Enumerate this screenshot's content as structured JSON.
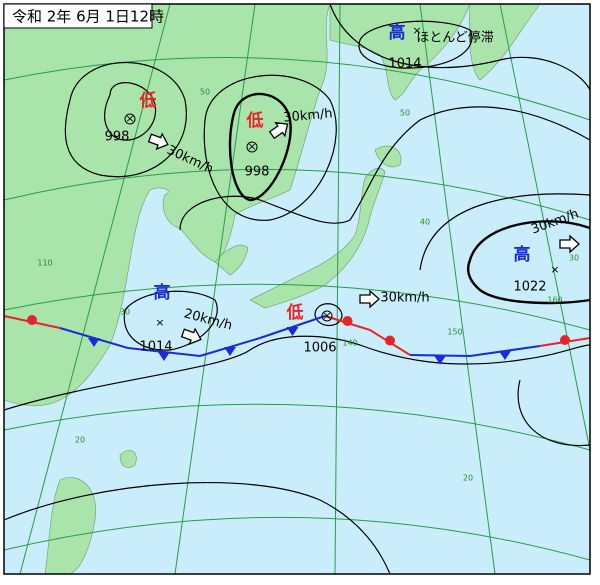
{
  "title": "令和 2年 6月 1日12時",
  "systems": [
    {
      "kind": "低",
      "pressure": 998,
      "motion": "30km/h"
    },
    {
      "kind": "低",
      "pressure": 998,
      "motion": "30km/h"
    },
    {
      "kind": "高",
      "pressure": 1014,
      "motion": "ほとんど停滞"
    },
    {
      "kind": "高",
      "pressure": 1014,
      "motion": "20km/h"
    },
    {
      "kind": "低",
      "pressure": 1006,
      "motion": "30km/h"
    },
    {
      "kind": "高",
      "pressure": 1022,
      "motion": "30km/h"
    }
  ],
  "grid_labels": [
    50,
    50,
    40,
    30,
    140,
    150,
    160,
    110,
    20,
    20,
    30
  ]
}
